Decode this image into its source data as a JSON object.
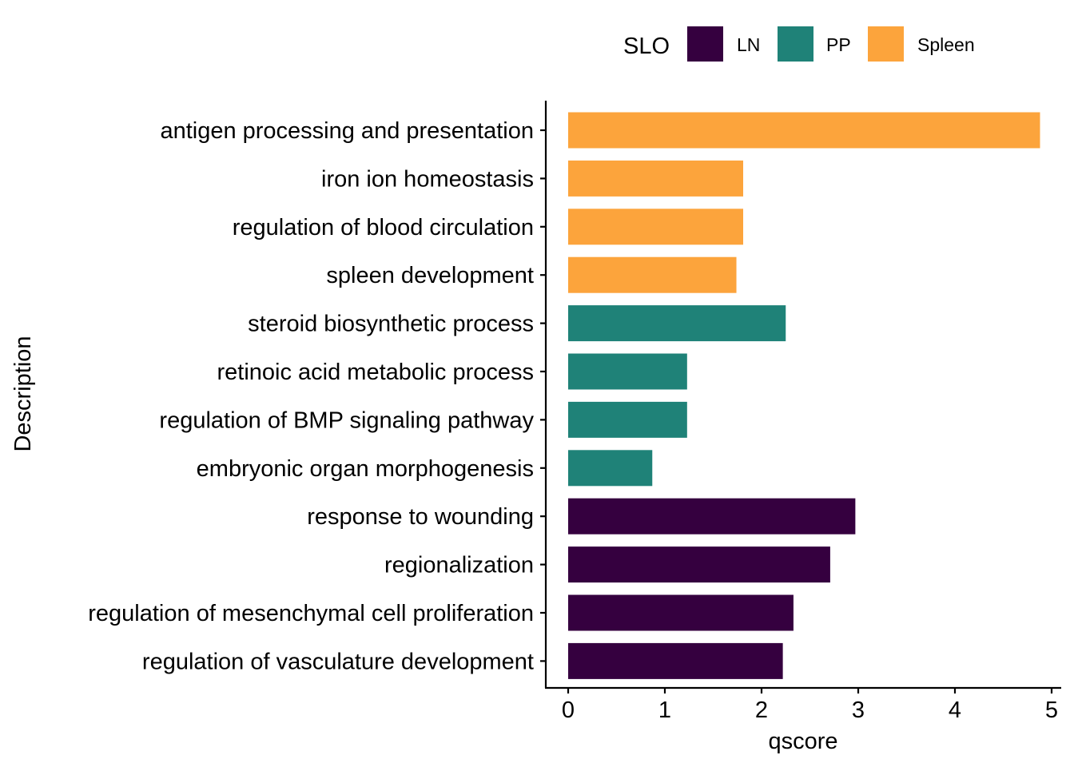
{
  "chart_data": {
    "type": "bar",
    "orientation": "horizontal",
    "xlabel": "qscore",
    "ylabel": "Description",
    "xlim": [
      -0.23,
      5.03
    ],
    "xticks": [
      0,
      1,
      2,
      3,
      4,
      5
    ],
    "xtick_labels": [
      "0",
      "1",
      "2",
      "3",
      "4",
      "5"
    ],
    "legend": {
      "title": "SLO",
      "position": "top",
      "entries": [
        {
          "label": "LN",
          "color": "#35003F"
        },
        {
          "label": "PP",
          "color": "#1F8278"
        },
        {
          "label": "Spleen",
          "color": "#FCA43C"
        }
      ]
    },
    "categories": [
      "antigen processing and presentation",
      "iron ion homeostasis",
      "regulation of blood circulation",
      "spleen development",
      "steroid biosynthetic process",
      "retinoic acid metabolic process",
      "regulation of BMP signaling pathway",
      "embryonic organ morphogenesis",
      "response to wounding",
      "regionalization",
      "regulation of mesenchymal cell proliferation",
      "regulation of vasculature development"
    ],
    "values": [
      4.88,
      1.81,
      1.81,
      1.74,
      2.25,
      1.23,
      1.23,
      0.87,
      2.97,
      2.71,
      2.33,
      2.22
    ],
    "groups": [
      "Spleen",
      "Spleen",
      "Spleen",
      "Spleen",
      "PP",
      "PP",
      "PP",
      "PP",
      "LN",
      "LN",
      "LN",
      "LN"
    ],
    "grid": false
  }
}
